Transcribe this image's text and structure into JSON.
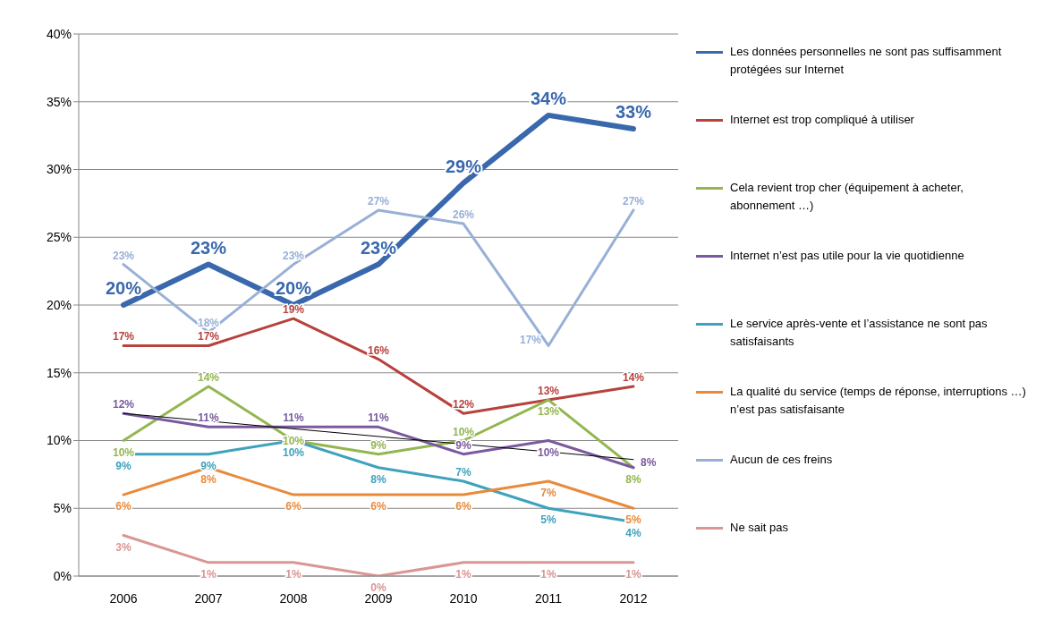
{
  "chart_data": {
    "type": "line",
    "categories": [
      "2006",
      "2007",
      "2008",
      "2009",
      "2010",
      "2011",
      "2012"
    ],
    "ylim": [
      0,
      40
    ],
    "yticks": [
      {
        "value": 0,
        "label": "0%"
      },
      {
        "value": 5,
        "label": "5%"
      },
      {
        "value": 10,
        "label": "10%"
      },
      {
        "value": 15,
        "label": "15%"
      },
      {
        "value": 20,
        "label": "20%"
      },
      {
        "value": 25,
        "label": "25%"
      },
      {
        "value": 30,
        "label": "30%"
      },
      {
        "value": 35,
        "label": "35%"
      },
      {
        "value": 40,
        "label": "40%"
      }
    ],
    "grid": "y",
    "legend": "right",
    "marker": "none",
    "line_style": "solid",
    "series": [
      {
        "name": "Les données personnelles ne sont pas suffisamment protégées sur Internet",
        "color": "#3a68ad",
        "values": [
          20,
          23,
          20,
          23,
          29,
          34,
          33
        ],
        "value_labels": [
          "20%",
          "23%",
          "20%",
          "23%",
          "29%",
          "34%",
          "33%"
        ]
      },
      {
        "name": "Internet est trop compliqué à utiliser",
        "color": "#b7413c",
        "values": [
          17,
          17,
          19,
          16,
          12,
          13,
          14
        ],
        "value_labels": [
          "17%",
          "17%",
          "19%",
          "16%",
          "12%",
          "13%",
          "14%"
        ]
      },
      {
        "name": "Cela revient trop cher (équipement à acheter, abonnement …)",
        "color": "#93b650",
        "values": [
          10,
          14,
          10,
          9,
          10,
          13,
          8
        ],
        "value_labels": [
          "10%",
          "14%",
          "10%",
          "9%",
          "10%",
          "13%",
          "8%"
        ]
      },
      {
        "name": "Internet n’est pas utile pour la vie quotidienne",
        "color": "#7a5a9e",
        "values": [
          12,
          11,
          11,
          11,
          9,
          10,
          8
        ],
        "value_labels": [
          "12%",
          "11%",
          "11%",
          "11%",
          "9%",
          "10%",
          "8%"
        ]
      },
      {
        "name": "Le service après-vente et l’assistance  ne sont pas satisfaisants",
        "color": "#3fa2bd",
        "values": [
          9,
          9,
          10,
          8,
          7,
          5,
          4
        ],
        "value_labels": [
          "9%",
          "9%",
          "10%",
          "8%",
          "7%",
          "5%",
          "4%"
        ]
      },
      {
        "name": "La qualité du service (temps de réponse, interruptions …) n’est pas satisfaisante",
        "color": "#e98a3b",
        "values": [
          6,
          8,
          6,
          6,
          6,
          7,
          5
        ],
        "value_labels": [
          "6%",
          "8%",
          "6%",
          "6%",
          "6%",
          "7%",
          "5%"
        ]
      },
      {
        "name": "Aucun de ces freins",
        "color": "#98b0d6",
        "values": [
          23,
          18,
          23,
          27,
          26,
          17,
          27
        ],
        "value_labels": [
          "23%",
          "18%",
          "23%",
          "27%",
          "26%",
          "17%",
          "27%"
        ]
      },
      {
        "name": "Ne sait pas",
        "color": "#d99694",
        "values": [
          3,
          1,
          1,
          0,
          1,
          1,
          1
        ],
        "value_labels": [
          "3%",
          "1%",
          "1%",
          "0%",
          "1%",
          "1%",
          "1%"
        ]
      },
      {
        "type": "line",
        "color": "#000000",
        "values": [
          12,
          null,
          null,
          null,
          null,
          null,
          8.6
        ]
      }
    ]
  }
}
